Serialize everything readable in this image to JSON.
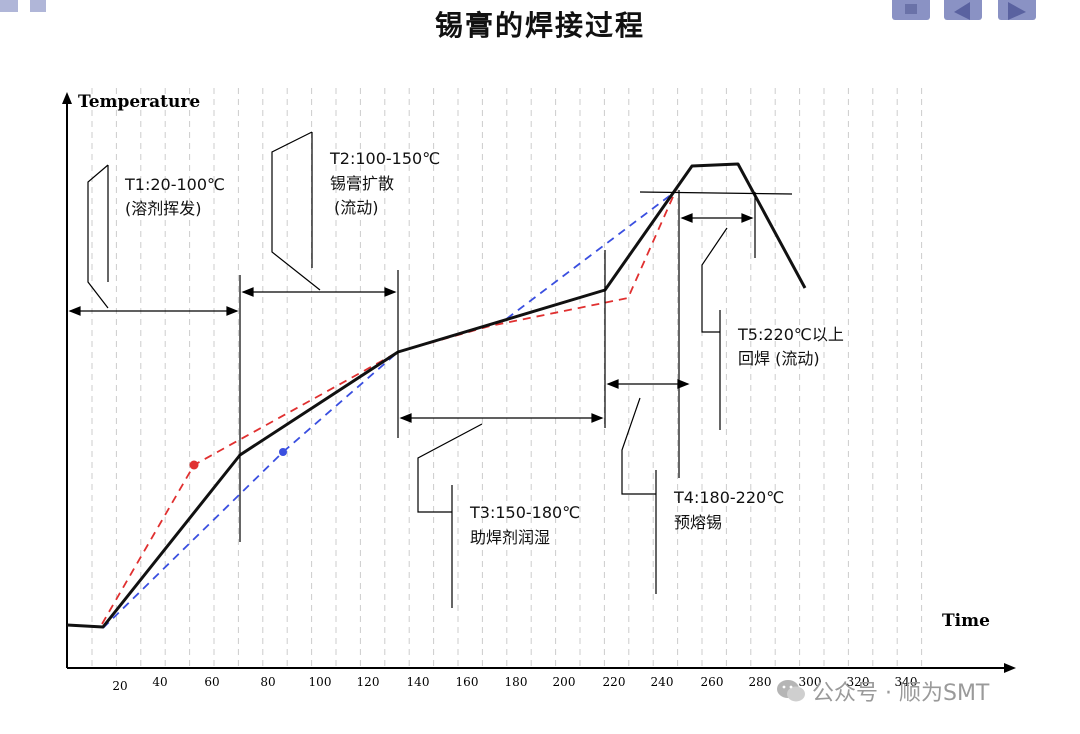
{
  "title": "锡膏的焊接过程",
  "axes": {
    "y_label": "Temperature",
    "x_label": "Time",
    "x_ticks": [
      "20",
      "40",
      "60",
      "80",
      "100",
      "120",
      "140",
      "160",
      "180",
      "200",
      "220",
      "240",
      "260",
      "280",
      "300",
      "320",
      "340"
    ]
  },
  "zones": [
    {
      "id": "t1",
      "lines": [
        "T1:20-100℃",
        "(溶剂挥发)"
      ]
    },
    {
      "id": "t2",
      "lines": [
        "T2:100-150℃",
        "锡膏扩散",
        "(流动)"
      ]
    },
    {
      "id": "t3",
      "lines": [
        "T3:150-180℃",
        "助焊剂润湿"
      ]
    },
    {
      "id": "t4",
      "lines": [
        "T4:180-220℃",
        "预熔锡"
      ]
    },
    {
      "id": "t5",
      "lines": [
        "T5:220℃以上",
        "回焊 (流动)"
      ]
    }
  ],
  "colors": {
    "main_curve": "#111111",
    "red_curve": "#e03030",
    "blue_curve": "#3a4fe0",
    "grid": "#cccccc",
    "nav": "#8a92c4"
  },
  "watermark": {
    "text": "公众号 · 顺为SMT",
    "icon": "wechat-icon"
  },
  "nav": {
    "icons": [
      "home-icon",
      "prev-arrow-icon",
      "next-arrow-icon"
    ]
  }
}
